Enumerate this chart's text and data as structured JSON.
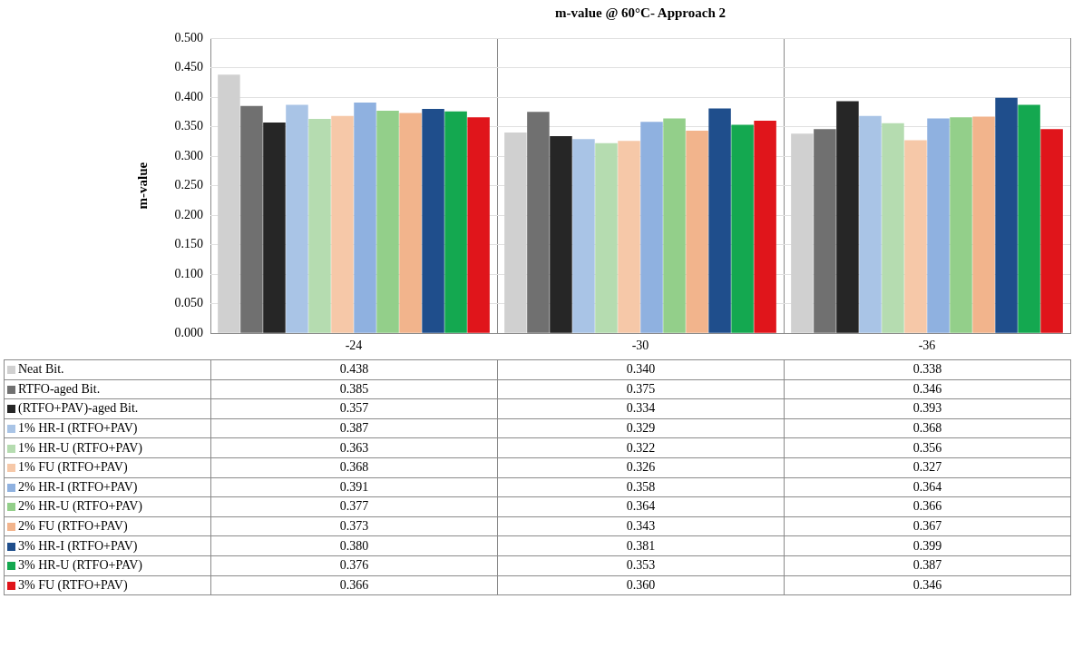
{
  "chart_data": {
    "type": "bar",
    "title": "m-value @ 60°C- Approach 2",
    "ylabel": "m-value",
    "categories": [
      "-24",
      "-30",
      "-36"
    ],
    "ylim": [
      0,
      0.5
    ],
    "yticks": [
      {
        "value": 0,
        "label": "0.000"
      },
      {
        "value": 0.05,
        "label": "0.050"
      },
      {
        "value": 0.1,
        "label": "0.100"
      },
      {
        "value": 0.15,
        "label": "0.150"
      },
      {
        "value": 0.2,
        "label": "0.200"
      },
      {
        "value": 0.25,
        "label": "0.250"
      },
      {
        "value": 0.3,
        "label": "0.300"
      },
      {
        "value": 0.35,
        "label": "0.350"
      },
      {
        "value": 0.4,
        "label": "0.400"
      },
      {
        "value": 0.45,
        "label": "0.450"
      },
      {
        "value": 0.5,
        "label": "0.500"
      }
    ],
    "grid": true,
    "legend": "bottom",
    "series": [
      {
        "name": "Neat Bit.",
        "color": "#d0d0d0",
        "values": [
          0.438,
          0.34,
          0.338
        ],
        "value_labels": [
          "0.438",
          "0.340",
          "0.338"
        ]
      },
      {
        "name": "RTFO-aged Bit.",
        "color": "#707070",
        "values": [
          0.385,
          0.375,
          0.346
        ],
        "value_labels": [
          "0.385",
          "0.375",
          "0.346"
        ]
      },
      {
        "name": "(RTFO+PAV)-aged Bit.",
        "color": "#262626",
        "values": [
          0.357,
          0.334,
          0.393
        ],
        "value_labels": [
          "0.357",
          "0.334",
          "0.393"
        ]
      },
      {
        "name": "1% HR-I (RTFO+PAV)",
        "color": "#a9c4e6",
        "values": [
          0.387,
          0.329,
          0.368
        ],
        "value_labels": [
          "0.387",
          "0.329",
          "0.368"
        ]
      },
      {
        "name": "1% HR-U (RTFO+PAV)",
        "color": "#b5dcb0",
        "values": [
          0.363,
          0.322,
          0.356
        ],
        "value_labels": [
          "0.363",
          "0.322",
          "0.356"
        ]
      },
      {
        "name": "1% FU (RTFO+PAV)",
        "color": "#f6c8a8",
        "values": [
          0.368,
          0.326,
          0.327
        ],
        "value_labels": [
          "0.368",
          "0.326",
          "0.327"
        ]
      },
      {
        "name": "2% HR-I (RTFO+PAV)",
        "color": "#8fb1e0",
        "values": [
          0.391,
          0.358,
          0.364
        ],
        "value_labels": [
          "0.391",
          "0.358",
          "0.364"
        ]
      },
      {
        "name": "2% HR-U (RTFO+PAV)",
        "color": "#93cf8a",
        "values": [
          0.377,
          0.364,
          0.366
        ],
        "value_labels": [
          "0.377",
          "0.364",
          "0.366"
        ]
      },
      {
        "name": "2% FU (RTFO+PAV)",
        "color": "#f2b48c",
        "values": [
          0.373,
          0.343,
          0.367
        ],
        "value_labels": [
          "0.373",
          "0.343",
          "0.367"
        ]
      },
      {
        "name": "3% HR-I (RTFO+PAV)",
        "color": "#1f4e8c",
        "values": [
          0.38,
          0.381,
          0.399
        ],
        "value_labels": [
          "0.380",
          "0.381",
          "0.399"
        ]
      },
      {
        "name": "3% HR-U (RTFO+PAV)",
        "color": "#14a850",
        "values": [
          0.376,
          0.353,
          0.387
        ],
        "value_labels": [
          "0.376",
          "0.353",
          "0.387"
        ]
      },
      {
        "name": "3% FU (RTFO+PAV)",
        "color": "#e0151b",
        "values": [
          0.366,
          0.36,
          0.346
        ],
        "value_labels": [
          "0.366",
          "0.360",
          "0.346"
        ]
      }
    ]
  }
}
